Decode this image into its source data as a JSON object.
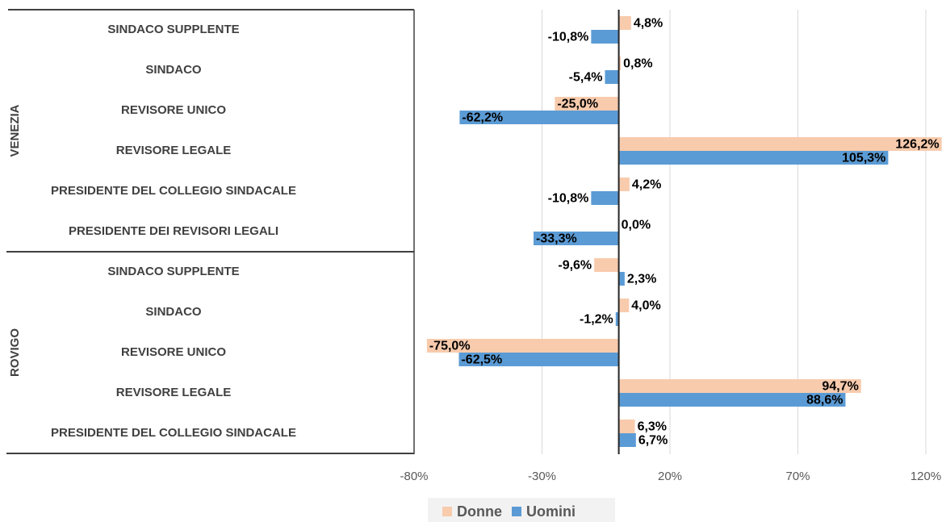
{
  "chart_data": {
    "type": "bar",
    "orientation": "horizontal",
    "groups": [
      {
        "name": "VENEZIA",
        "categories": [
          "SINDACO SUPPLENTE",
          "SINDACO",
          "REVISORE UNICO",
          "REVISORE LEGALE",
          "PRESIDENTE DEL COLLEGIO SINDACALE",
          "PRESIDENTE DEI REVISORI LEGALI"
        ]
      },
      {
        "name": "ROVIGO",
        "categories": [
          "SINDACO SUPPLENTE",
          "SINDACO",
          "REVISORE UNICO",
          "REVISORE LEGALE",
          "PRESIDENTE DEL COLLEGIO SINDACALE"
        ]
      }
    ],
    "series": [
      {
        "name": "Donne",
        "color": "#f8cbad",
        "values": [
          4.8,
          0.8,
          -25.0,
          126.2,
          4.2,
          0.0,
          -9.6,
          4.0,
          -75.0,
          94.7,
          6.3
        ],
        "value_labels": [
          "4,8%",
          "0,8%",
          "-25,0%",
          "126,2%",
          "4,2%",
          "0,0%",
          "-9,6%",
          "4,0%",
          "-75,0%",
          "94,7%",
          "6,3%"
        ]
      },
      {
        "name": "Uomini",
        "color": "#5b9bd5",
        "values": [
          -10.8,
          -5.4,
          -62.2,
          105.3,
          -10.8,
          -33.3,
          2.3,
          -1.2,
          -62.5,
          88.6,
          6.7
        ],
        "value_labels": [
          "-10,8%",
          "-5,4%",
          "-62,2%",
          "105,3%",
          "-10,8%",
          "-33,3%",
          "2,3%",
          "-1,2%",
          "-62,5%",
          "88,6%",
          "6,7%"
        ]
      }
    ],
    "xlim": [
      -80,
      120
    ],
    "xticks": [
      {
        "value": -80,
        "label": "-80%"
      },
      {
        "value": -30,
        "label": "-30%"
      },
      {
        "value": 20,
        "label": "20%"
      },
      {
        "value": 70,
        "label": "70%"
      },
      {
        "value": 120,
        "label": "120%"
      }
    ],
    "grid": true,
    "legend": "bottom"
  }
}
